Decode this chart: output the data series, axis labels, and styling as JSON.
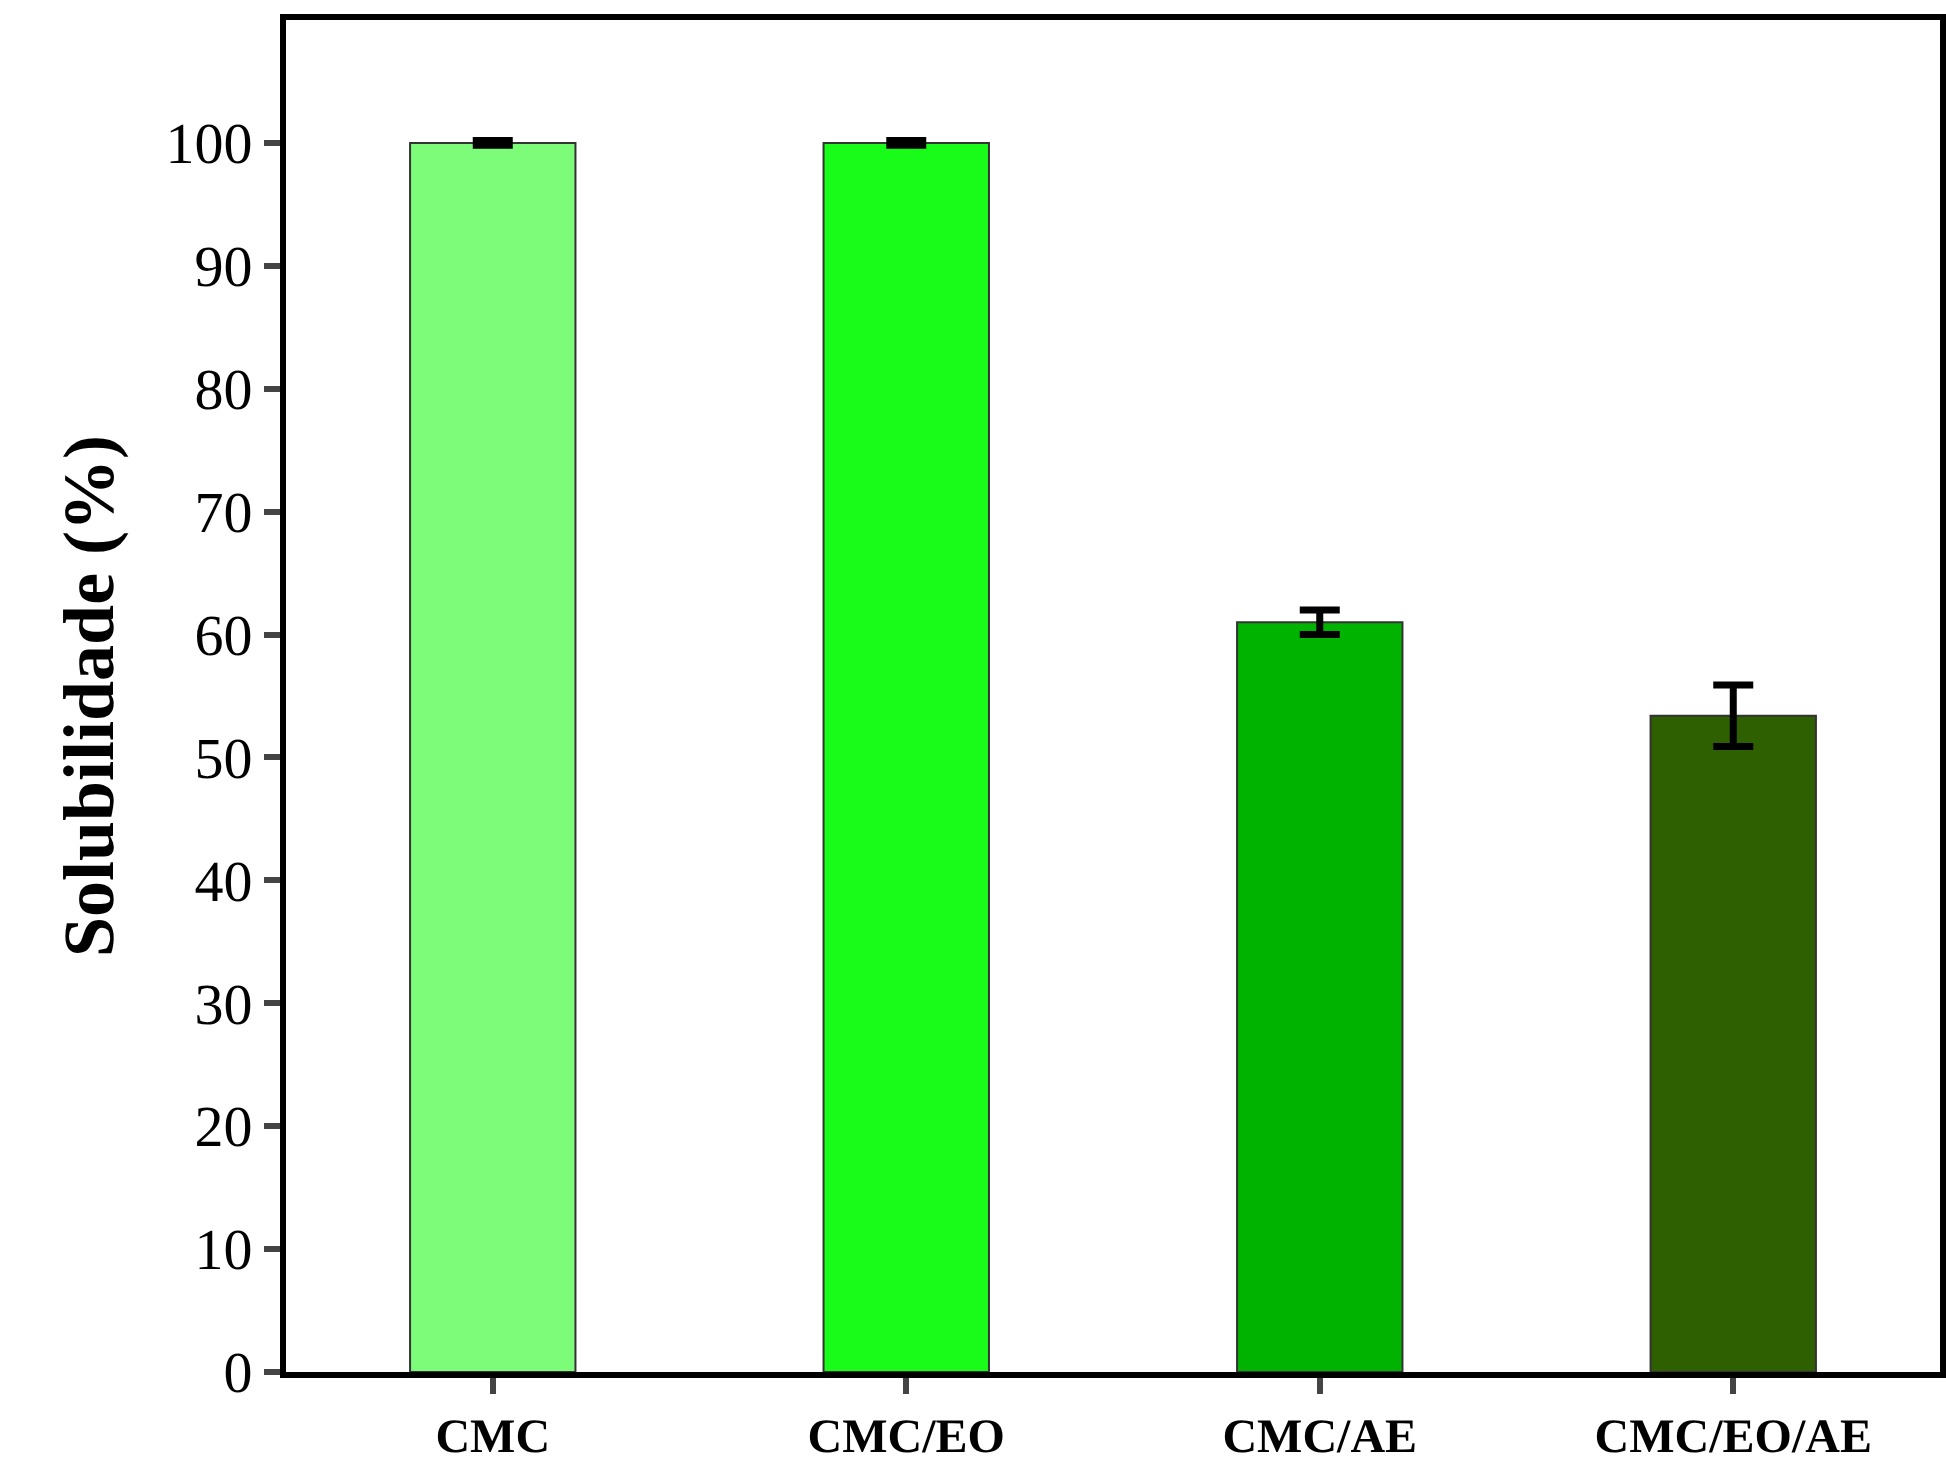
{
  "chart_data": {
    "type": "bar",
    "ylabel": "Solubilidade (%)",
    "categories": [
      "CMC",
      "CMC/EO",
      "CMC/AE",
      "CMC/EO/AE"
    ],
    "values": [
      100,
      100,
      61.0,
      53.4
    ],
    "errors": [
      0.2,
      0.2,
      1.0,
      2.5
    ],
    "colors": [
      "#7dfc7a",
      "#19fc1a",
      "#00b300",
      "#2e5f00"
    ],
    "ylim": [
      0,
      110
    ],
    "yticks": [
      0,
      10,
      20,
      30,
      40,
      50,
      60,
      70,
      80,
      90,
      100
    ]
  }
}
